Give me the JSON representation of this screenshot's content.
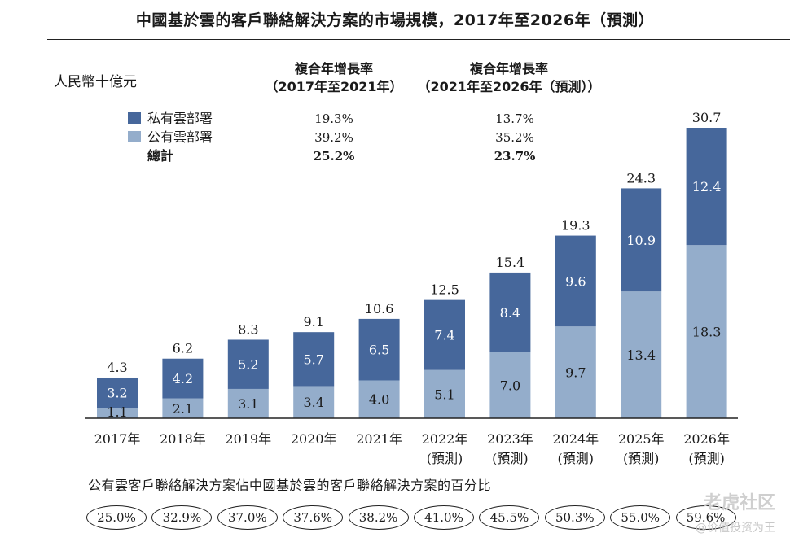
{
  "title": "中國基於雲的客戶聯絡解決方案的市場規模，2017年至2026年（預測）",
  "unit": "人民幣十億元",
  "cagr": {
    "headers": [
      {
        "line1": "複合年增長率",
        "line2": "（2017年至2021年）"
      },
      {
        "line1": "複合年增長率",
        "line2": "（2021年至2026年（預測））"
      }
    ],
    "rows": [
      {
        "label": "私有雲部署",
        "v1": "19.3%",
        "v2": "13.7%"
      },
      {
        "label": "公有雲部署",
        "v1": "39.2%",
        "v2": "35.2%"
      },
      {
        "label": "總計",
        "v1": "25.2%",
        "v2": "23.7%"
      }
    ]
  },
  "colors": {
    "private": "#46679b",
    "public": "#94adcb"
  },
  "chart_data": {
    "type": "bar",
    "stacked": true,
    "categories": [
      "2017年",
      "2018年",
      "2019年",
      "2020年",
      "2021年",
      "2022年\n(預測)",
      "2023年\n(預測)",
      "2024年\n(預測)",
      "2025年\n(預測)",
      "2026年\n(預測)"
    ],
    "series": [
      {
        "name": "公有雲部署",
        "values": [
          1.1,
          2.1,
          3.1,
          3.4,
          4.0,
          5.1,
          7.0,
          9.7,
          13.4,
          18.3
        ]
      },
      {
        "name": "私有雲部署",
        "values": [
          3.2,
          4.2,
          5.2,
          5.7,
          6.5,
          7.4,
          8.4,
          9.6,
          10.9,
          12.4
        ]
      }
    ],
    "totals": [
      4.3,
      6.2,
      8.3,
      9.1,
      10.6,
      12.5,
      15.4,
      19.3,
      24.3,
      30.7
    ],
    "ylim": [
      0,
      30.7
    ]
  },
  "share": {
    "caption": "公有雲客戶聯絡解決方案佔中國基於雲的客戶聯絡解決方案的百分比",
    "values": [
      "25.0%",
      "32.9%",
      "37.0%",
      "37.6%",
      "38.2%",
      "41.0%",
      "45.5%",
      "50.3%",
      "55.0%",
      "59.6%"
    ]
  },
  "watermark": {
    "logo": "老虎社区",
    "sub": "@价值投资为王"
  }
}
